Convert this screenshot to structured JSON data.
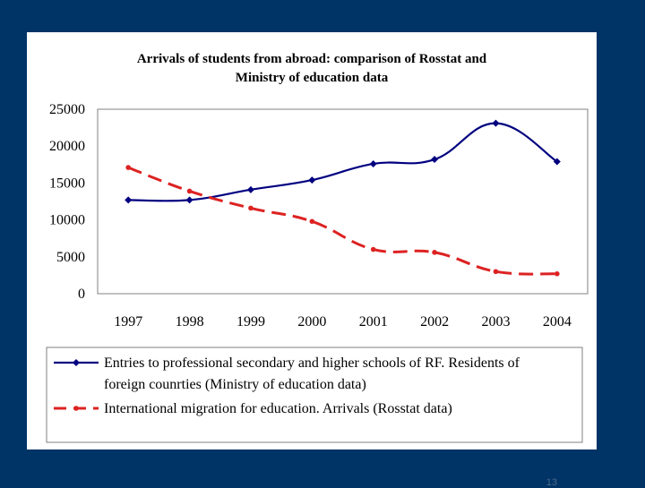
{
  "slide": {
    "page_number": "13"
  },
  "chart_data": {
    "type": "line",
    "title_line1": "Arrivals of  students from abroad:  comparison of Rosstat and",
    "title_line2": "Ministry of education data",
    "categories": [
      "1997",
      "1998",
      "1999",
      "2000",
      "2001",
      "2002",
      "2003",
      "2004"
    ],
    "ylim": [
      0,
      25000
    ],
    "yticks": [
      "0",
      "5000",
      "10000",
      "15000",
      "20000",
      "25000"
    ],
    "xlabel": "",
    "ylabel": "",
    "legend_position": "bottom",
    "series": [
      {
        "name": "Entries to  professional secondary  and higher schools of RF.  Residents of foreign counrties   (Ministry of education data)",
        "legend_line1": "Entries to  professional secondary  and higher schools of RF.  Residents of",
        "legend_line2": "foreign counrties   (Ministry of education data)",
        "color": "#000080",
        "style": "solid",
        "marker": "diamond",
        "values": [
          12700,
          12700,
          14100,
          15400,
          17600,
          18200,
          23100,
          17900
        ]
      },
      {
        "name": "International migration for education. Arrivals (Rosstat data)",
        "legend_line1": "International migration for education. Arrivals (Rosstat data)",
        "color": "#dd2222",
        "style": "dashed",
        "marker": "circle",
        "values": [
          17100,
          13900,
          11600,
          9800,
          6000,
          5600,
          3000,
          2700
        ]
      }
    ]
  }
}
